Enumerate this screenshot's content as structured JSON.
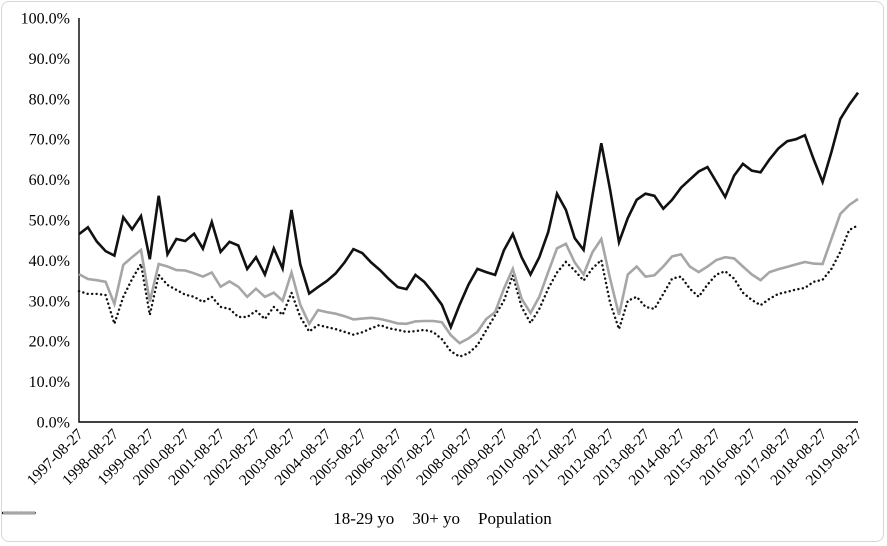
{
  "figure": {
    "title": "",
    "background": "#ffffff",
    "border_color": "#d7d7d7"
  },
  "axis_color": "#000000",
  "chart_data": {
    "type": "line",
    "title": "",
    "xlabel": "",
    "ylabel": "",
    "grid": false,
    "legend_position": "bottom-center",
    "y_axis": {
      "min": 0,
      "max": 100,
      "tick_labels": [
        "100.0%",
        "90.0%",
        "80.0%",
        "70.0%",
        "60.0%",
        "50.0%",
        "40.0%",
        "30.0%",
        "20.0%",
        "10.0%",
        "0.0%"
      ]
    },
    "x_axis": {
      "tick_labels": [
        "1997-08-27",
        "1998-08-27",
        "1999-08-27",
        "2000-08-27",
        "2001-08-27",
        "2002-08-27",
        "2003-08-27",
        "2004-08-27",
        "2005-08-27",
        "2006-08-27",
        "2007-08-27",
        "2008-08-27",
        "2009-08-27",
        "2010-08-27",
        "2011-08-27",
        "2012-08-27",
        "2013-08-27",
        "2014-08-27",
        "2015-08-27",
        "2016-08-27",
        "2017-08-27",
        "2018-08-27",
        "2019-08-27"
      ],
      "points_per_tick": 4,
      "label_rotation_deg": 45
    },
    "series": [
      {
        "name": "18-29 yo",
        "style": "solid",
        "color": "#111111",
        "width": 2.6,
        "values": [
          46.5,
          48.2,
          44.7,
          42.3,
          41.2,
          50.7,
          47.7,
          51.0,
          40.3,
          56.0,
          41.5,
          45.3,
          44.8,
          46.6,
          42.9,
          49.5,
          42.1,
          44.6,
          43.7,
          37.9,
          40.8,
          36.5,
          43.0,
          38.0,
          52.5,
          39.0,
          31.8,
          33.4,
          34.9,
          36.8,
          39.5,
          42.8,
          41.8,
          39.5,
          37.6,
          35.4,
          33.4,
          32.9,
          36.4,
          34.7,
          32.0,
          29.0,
          23.5,
          29.0,
          34.0,
          37.9,
          37.1,
          36.4,
          42.5,
          46.5,
          40.8,
          36.5,
          40.8,
          47.0,
          56.5,
          52.5,
          45.5,
          42.6,
          56.0,
          69.0,
          57.5,
          44.5,
          50.5,
          55.0,
          56.5,
          56.0,
          52.8,
          55.0,
          58.0,
          60.0,
          62.0,
          63.1,
          59.4,
          55.7,
          61.0,
          63.9,
          62.2,
          61.8,
          65.0,
          67.7,
          69.5,
          70.0,
          71.0,
          65.0,
          59.4,
          66.8,
          75.0,
          78.5,
          81.5
        ]
      },
      {
        "name": "30+ yo",
        "style": "dotted",
        "color": "#111111",
        "width": 2.4,
        "values": [
          32.4,
          31.7,
          31.7,
          31.4,
          24.3,
          31.0,
          35.4,
          39.1,
          26.5,
          36.4,
          33.9,
          32.7,
          31.5,
          31.0,
          29.7,
          31.0,
          28.5,
          28.0,
          26.0,
          26.0,
          27.5,
          25.5,
          28.5,
          26.5,
          32.0,
          26.0,
          22.4,
          24.0,
          23.5,
          23.0,
          22.3,
          21.6,
          22.2,
          23.2,
          24.0,
          23.2,
          22.8,
          22.3,
          22.5,
          22.8,
          22.3,
          20.5,
          17.5,
          16.2,
          17.0,
          19.0,
          22.7,
          26.4,
          30.0,
          36.3,
          28.5,
          24.5,
          28.0,
          33.0,
          37.0,
          39.6,
          37.5,
          35.0,
          38.0,
          40.1,
          29.5,
          23.0,
          30.0,
          31.0,
          28.5,
          28.0,
          31.7,
          35.5,
          36.0,
          33.0,
          31.0,
          34.0,
          36.5,
          37.3,
          35.5,
          32.0,
          30.2,
          28.9,
          30.5,
          31.7,
          32.2,
          32.8,
          33.2,
          34.7,
          35.2,
          37.9,
          42.1,
          47.5,
          48.7
        ]
      },
      {
        "name": "Population",
        "style": "solid",
        "color": "#a6a6a6",
        "width": 2.6,
        "values": [
          36.6,
          35.4,
          35.1,
          34.7,
          29.2,
          38.9,
          40.8,
          42.6,
          29.8,
          39.1,
          38.5,
          37.6,
          37.5,
          36.8,
          36.0,
          37.0,
          33.5,
          34.8,
          33.5,
          31.0,
          33.0,
          31.0,
          32.0,
          30.0,
          37.0,
          29.0,
          24.3,
          27.7,
          27.2,
          26.8,
          26.2,
          25.4,
          25.6,
          25.8,
          25.5,
          25.0,
          24.4,
          24.3,
          24.9,
          25.0,
          25.0,
          24.7,
          21.5,
          19.5,
          20.7,
          22.3,
          25.5,
          27.2,
          33.0,
          37.9,
          30.5,
          27.0,
          31.0,
          37.1,
          43.0,
          44.1,
          39.5,
          36.5,
          42.0,
          45.3,
          35.5,
          26.5,
          36.5,
          38.5,
          36.0,
          36.3,
          38.5,
          41.0,
          41.5,
          38.5,
          37.1,
          38.5,
          40.1,
          40.8,
          40.5,
          38.5,
          36.5,
          35.1,
          37.1,
          37.8,
          38.4,
          39.0,
          39.6,
          39.2,
          39.1,
          45.3,
          51.5,
          53.7,
          55.2
        ]
      }
    ],
    "legend_entries": [
      "18-29 yo",
      "30+ yo",
      "Population"
    ]
  }
}
